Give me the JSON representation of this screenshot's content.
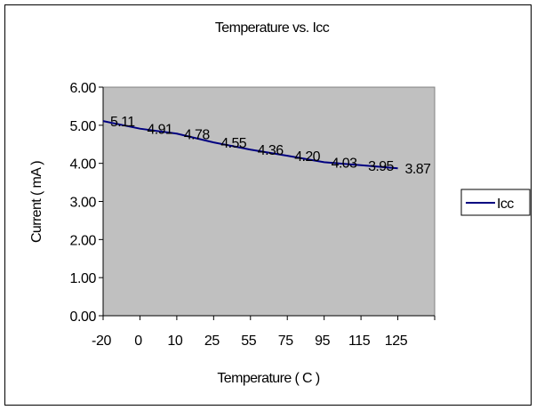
{
  "chart_data": {
    "type": "line",
    "title": "Temperature vs. Icc",
    "xlabel": "Temperature ( C )",
    "ylabel": "Current ( mA )",
    "categories": [
      "-20",
      "0",
      "10",
      "25",
      "55",
      "75",
      "95",
      "115",
      "125"
    ],
    "series": [
      {
        "name": "Icc",
        "values": [
          5.11,
          4.91,
          4.78,
          4.55,
          4.36,
          4.2,
          4.03,
          3.95,
          3.87
        ],
        "color": "#000080"
      }
    ],
    "data_labels": [
      "5.11",
      "4.91",
      "4.78",
      "4.55",
      "4.36",
      "4.20",
      "4.03",
      "3.95",
      "3.87"
    ],
    "ylim": [
      0,
      6
    ],
    "yticks": [
      "0.00",
      "1.00",
      "2.00",
      "3.00",
      "4.00",
      "5.00",
      "6.00"
    ],
    "plot_background": "#c0c0c0",
    "grid": false,
    "legend_position": "right"
  }
}
